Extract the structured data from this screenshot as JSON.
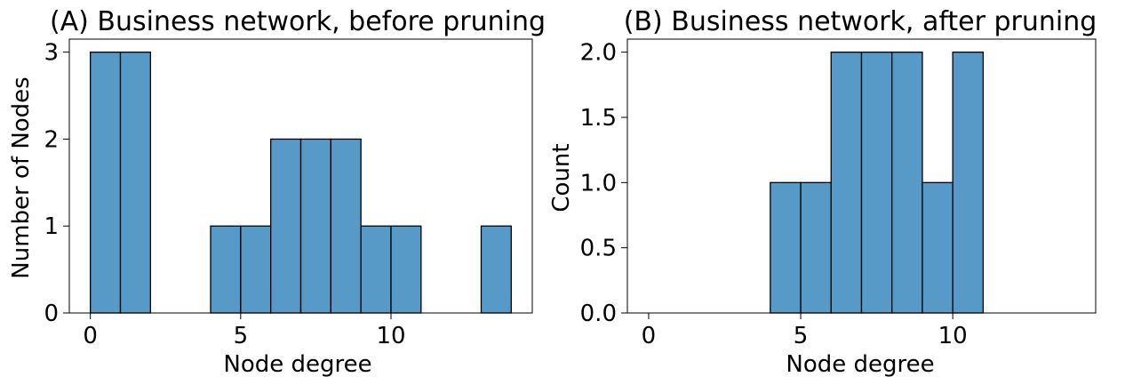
{
  "chart_data": [
    {
      "type": "bar",
      "title": "(A) Business network, before pruning",
      "xlabel": "Node degree",
      "ylabel": "Number of Nodes",
      "xlim": [
        -0.7,
        14.7
      ],
      "ylim": [
        0,
        3.15
      ],
      "xticks": [
        0,
        5,
        10
      ],
      "yticks": [
        0,
        1,
        2,
        3
      ],
      "ytick_labels": [
        "0",
        "1",
        "2",
        "3"
      ],
      "bin_edges": [
        0,
        1,
        2,
        3,
        4,
        5,
        6,
        7,
        8,
        9,
        10,
        11,
        12,
        13,
        14
      ],
      "values": [
        3,
        3,
        0,
        0,
        1,
        1,
        2,
        2,
        2,
        1,
        1,
        0,
        0,
        1
      ],
      "bar_color": "#5799c7",
      "edge_color": "#000000",
      "grid": false
    },
    {
      "type": "bar",
      "title": "(B) Business network, after pruning",
      "xlabel": "Node degree",
      "ylabel": "Count",
      "xlim": [
        -0.7,
        14.7
      ],
      "ylim": [
        0,
        2.1
      ],
      "xticks": [
        0,
        5,
        10
      ],
      "yticks": [
        0,
        0.5,
        1,
        1.5,
        2
      ],
      "ytick_labels": [
        "0.0",
        "0.5",
        "1.0",
        "1.5",
        "2.0"
      ],
      "bin_edges": [
        0,
        1,
        2,
        3,
        4,
        5,
        6,
        7,
        8,
        9,
        10,
        11,
        12,
        13,
        14
      ],
      "values": [
        0,
        0,
        0,
        0,
        1,
        1,
        2,
        2,
        2,
        1,
        2,
        0,
        0,
        0
      ],
      "bar_color": "#5799c7",
      "edge_color": "#000000",
      "grid": false
    }
  ]
}
